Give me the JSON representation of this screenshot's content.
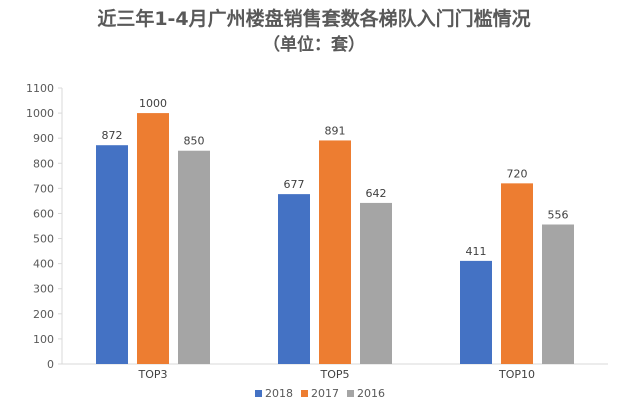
{
  "chart_data": {
    "type": "bar",
    "title": "近三年1-4月广州楼盘销售套数各梯队入门门槛情况",
    "subtitle": "（单位：套）",
    "categories": [
      "TOP3",
      "TOP5",
      "TOP10"
    ],
    "series": [
      {
        "name": "2018",
        "color": "#4472C4",
        "values": [
          872,
          677,
          411
        ]
      },
      {
        "name": "2017",
        "color": "#ED7D31",
        "values": [
          1000,
          891,
          720
        ]
      },
      {
        "name": "2016",
        "color": "#A5A5A5",
        "values": [
          850,
          642,
          556
        ]
      }
    ],
    "yticks": [
      0,
      100,
      200,
      300,
      400,
      500,
      600,
      700,
      800,
      900,
      1000,
      1100
    ],
    "ylim": [
      0,
      1100
    ],
    "grid": false,
    "legend": "bottom"
  }
}
